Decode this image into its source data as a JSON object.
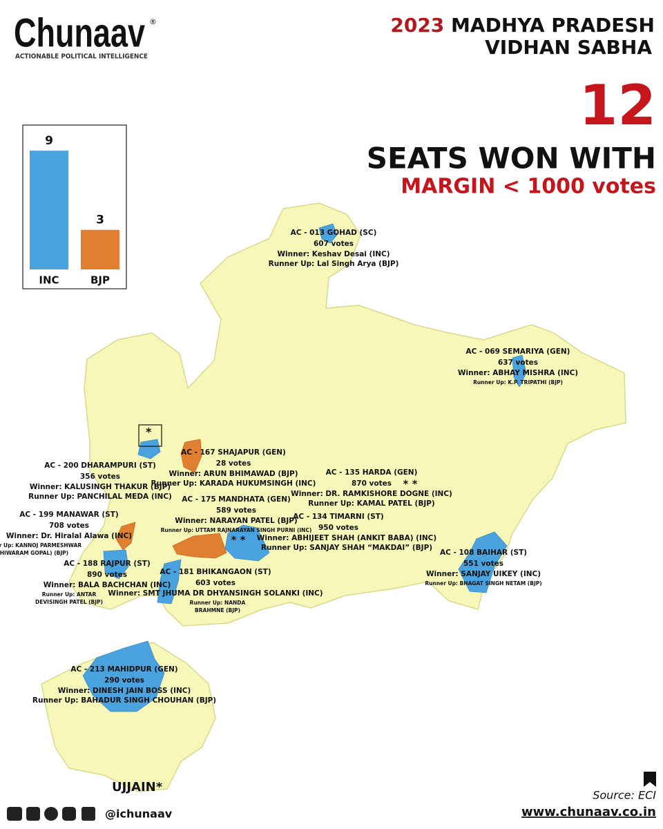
{
  "header": {
    "brand": "Chunaav",
    "registered": "®",
    "tagline": "ACTIONABLE POLITICAL INTELLIGENCE",
    "title_year": "2023",
    "title_rest": "MADHYA PRADESH",
    "title_line2": "VIDHAN SABHA"
  },
  "headline": {
    "count": "12",
    "line1": "SEATS WON WITH",
    "line2": "MARGIN < 1000 votes"
  },
  "chart_data": {
    "type": "bar",
    "categories": [
      "INC",
      "BJP"
    ],
    "values": [
      9,
      3
    ],
    "colors": [
      "#4aa3df",
      "#e07f30"
    ]
  },
  "constituencies": [
    {
      "name": "AC - 013 GOHAD (SC)",
      "margin": "607 votes",
      "winner": "Winner: Keshav Desai (INC)",
      "runner_up": [
        "Runner Up: Lal Singh Arya (BJP)"
      ]
    },
    {
      "name": "AC - 069 SEMARIYA (GEN)",
      "margin": "637 votes",
      "winner": "Winner: ABHAY MISHRA (INC)",
      "runner_up": [
        "Runner Up: K.P. TRIPATHI (BJP)"
      ]
    },
    {
      "name": "AC - 167 SHAJAPUR (GEN)",
      "margin": "28 votes",
      "winner": "Winner: ARUN BHIMAWAD (BJP)",
      "runner_up": [
        "Runner Up: KARADA HUKUMSINGH (INC)"
      ]
    },
    {
      "name": "AC - 200 DHARAMPURI (ST)",
      "margin": "356 votes",
      "winner": "Winner: KALUSINGH THAKUR (BJP)",
      "runner_up": [
        "Runner Up: PANCHILAL MEDA (INC)"
      ]
    },
    {
      "name": "AC - 135 HARDA (GEN)",
      "margin": "870 votes",
      "winner": "Winner: DR. RAMKISHORE DOGNE (INC)",
      "runner_up": [
        "Runner Up: KAMAL PATEL (BJP)"
      ]
    },
    {
      "name": "AC - 175 MANDHATA (GEN)",
      "margin": "589 votes",
      "winner": "Winner: NARAYAN PATEL (BJP)",
      "runner_up": [
        "Runner Up: UTTAM RAJNARAYAN SINGH PURNI (INC)"
      ]
    },
    {
      "name": "AC - 134 TIMARNI (ST)",
      "margin": "950 votes",
      "winner": "Winner: ABHIJEET SHAH (ANKIT BABA) (INC)",
      "runner_up": [
        "Runner Up: SANJAY SHAH “MAKDAI” (BJP)"
      ]
    },
    {
      "name": "AC - 199 MANAWAR (ST)",
      "margin": "708 votes",
      "winner": "Winner: Dr. Hiralal Alawa (INC)",
      "runner_up": [
        "Runner Up: KANNOJ PARMESHWAR",
        "(SHIWARAM GOPAL) (BJP)"
      ]
    },
    {
      "name": "AC - 188 RAJPUR (ST)",
      "margin": "890 votes",
      "winner": "Winner: BALA BACHCHAN (INC)",
      "runner_up": [
        "Runner Up: ANTAR",
        "DEVISINGH PATEL (BJP)"
      ]
    },
    {
      "name": "AC - 181 BHIKANGAON (ST)",
      "margin": "603 votes",
      "winner": "Winner: SMT JHUMA DR DHYANSINGH SOLANKI (INC)",
      "runner_up": [
        "Runner Up: NANDA",
        "BRAHMNE (BJP)"
      ]
    },
    {
      "name": "AC - 108 BAIHAR (ST)",
      "margin": "551 votes",
      "winner": "Winner: SANJAY UIKEY (INC)",
      "runner_up": [
        "Runner Up: BHAGAT SINGH NETAM (BJP)"
      ]
    },
    {
      "name": "AC - 213 MAHIDPUR (GEN)",
      "margin": "290 votes",
      "winner": "Winner: DINESH JAIN BOSS (INC)",
      "runner_up": [
        "Runner Up: BAHADUR SINGH CHOUHAN (BJP)"
      ]
    }
  ],
  "markers": {
    "box_star": "*",
    "double_star": "* *",
    "double_star_map": "* *"
  },
  "inset_label": "UJJAIN*",
  "footer": {
    "handle": "@ichunaav",
    "source": "Source: ECI",
    "website": "www.chunaav.co.in"
  }
}
